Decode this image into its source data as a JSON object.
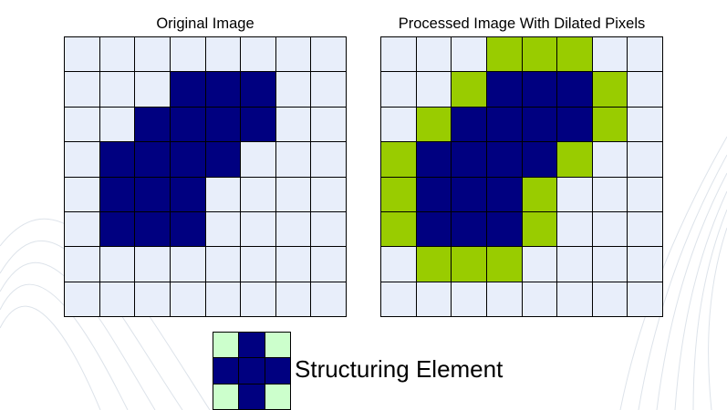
{
  "left_panel": {
    "title": "Original Image",
    "grid": [
      [
        0,
        0,
        0,
        0,
        0,
        0,
        0,
        0
      ],
      [
        0,
        0,
        0,
        1,
        1,
        1,
        0,
        0
      ],
      [
        0,
        0,
        1,
        1,
        1,
        1,
        0,
        0
      ],
      [
        0,
        1,
        1,
        1,
        1,
        0,
        0,
        0
      ],
      [
        0,
        1,
        1,
        1,
        0,
        0,
        0,
        0
      ],
      [
        0,
        1,
        1,
        1,
        0,
        0,
        0,
        0
      ],
      [
        0,
        0,
        0,
        0,
        0,
        0,
        0,
        0
      ],
      [
        0,
        0,
        0,
        0,
        0,
        0,
        0,
        0
      ]
    ]
  },
  "right_panel": {
    "title": "Processed Image With Dilated Pixels",
    "grid": [
      [
        0,
        0,
        0,
        2,
        2,
        2,
        0,
        0
      ],
      [
        0,
        0,
        2,
        1,
        1,
        1,
        2,
        0
      ],
      [
        0,
        2,
        1,
        1,
        1,
        1,
        2,
        0
      ],
      [
        2,
        1,
        1,
        1,
        1,
        2,
        0,
        0
      ],
      [
        2,
        1,
        1,
        1,
        2,
        0,
        0,
        0
      ],
      [
        2,
        1,
        1,
        1,
        2,
        0,
        0,
        0
      ],
      [
        0,
        2,
        2,
        2,
        0,
        0,
        0,
        0
      ],
      [
        0,
        0,
        0,
        0,
        0,
        0,
        0,
        0
      ]
    ]
  },
  "structuring_element": {
    "label": "Structuring Element",
    "grid": [
      [
        0,
        1,
        0
      ],
      [
        1,
        1,
        1
      ],
      [
        0,
        1,
        0
      ]
    ]
  },
  "colors": {
    "background_cell": "#e8eefa",
    "object_pixel": "#000080",
    "dilated_pixel": "#99cc00",
    "element_background": "#ccffcc"
  }
}
